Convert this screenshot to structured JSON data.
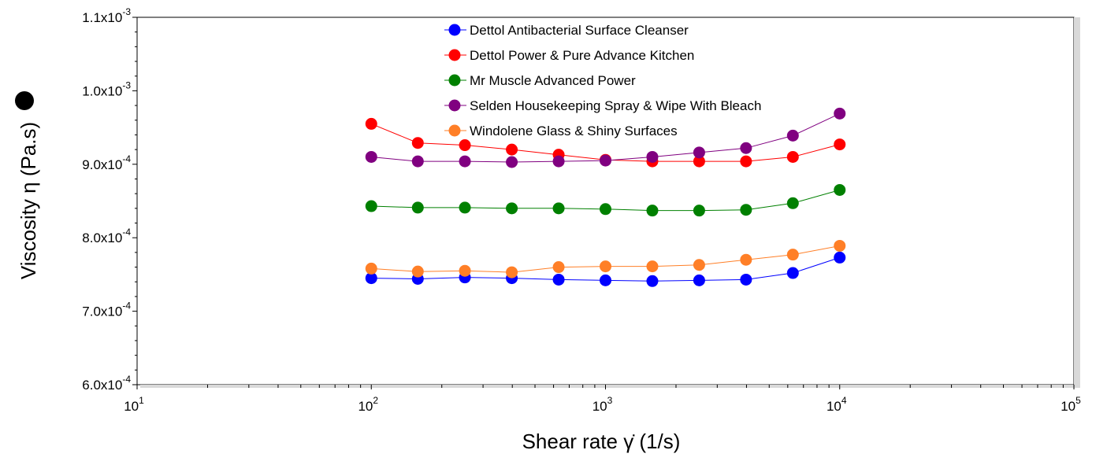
{
  "chart_data": {
    "type": "scatter",
    "title": "",
    "xlabel": "Shear rate  γ̇  (1/s)",
    "ylabel": "Viscosity  η  (Pa.s)",
    "ylabel_marker_color": "#000000",
    "x_scale": "log",
    "xlim": [
      10,
      100000
    ],
    "ylim": [
      0.0006,
      0.0011
    ],
    "x_ticks": [
      {
        "value": 10,
        "base": "10",
        "exp": "1"
      },
      {
        "value": 100,
        "base": "10",
        "exp": "2"
      },
      {
        "value": 1000,
        "base": "10",
        "exp": "3"
      },
      {
        "value": 10000,
        "base": "10",
        "exp": "4"
      },
      {
        "value": 100000,
        "base": "10",
        "exp": "5"
      }
    ],
    "y_ticks": [
      {
        "value": 0.0006,
        "mant": "6.0x10",
        "exp": "-4"
      },
      {
        "value": 0.0007,
        "mant": "7.0x10",
        "exp": "-4"
      },
      {
        "value": 0.0008,
        "mant": "8.0x10",
        "exp": "-4"
      },
      {
        "value": 0.0009,
        "mant": "9.0x10",
        "exp": "-4"
      },
      {
        "value": 0.001,
        "mant": "1.0x10",
        "exp": "-3"
      },
      {
        "value": 0.0011,
        "mant": "1.1x10",
        "exp": "-3"
      }
    ],
    "grid": false,
    "legend_position": "top-center",
    "x": [
      100,
      158,
      251,
      398,
      631,
      1000,
      1585,
      2512,
      3981,
      6310,
      10000
    ],
    "series": [
      {
        "name": "Dettol Antibacterial Surface Cleanser",
        "color": "#0000ff",
        "values": [
          0.000745,
          0.000744,
          0.000746,
          0.000745,
          0.000743,
          0.000742,
          0.000741,
          0.000742,
          0.000743,
          0.000752,
          0.000773
        ]
      },
      {
        "name": "Dettol Power & Pure Advance Kitchen",
        "color": "#ff0000",
        "values": [
          0.000955,
          0.000929,
          0.000926,
          0.00092,
          0.000913,
          0.000906,
          0.000904,
          0.000904,
          0.000904,
          0.00091,
          0.000927
        ]
      },
      {
        "name": "Mr Muscle Advanced Power",
        "color": "#008000",
        "values": [
          0.000843,
          0.000841,
          0.000841,
          0.00084,
          0.00084,
          0.000839,
          0.000837,
          0.000837,
          0.000838,
          0.000847,
          0.000865
        ]
      },
      {
        "name": "Selden Housekeeping Spray & Wipe With Bleach",
        "color": "#800080",
        "values": [
          0.00091,
          0.000904,
          0.000904,
          0.000903,
          0.000904,
          0.000905,
          0.00091,
          0.000916,
          0.000922,
          0.000939,
          0.000969
        ]
      },
      {
        "name": "Windolene Glass & Shiny Surfaces",
        "color": "#ff7f27",
        "values": [
          0.000758,
          0.000754,
          0.000755,
          0.000753,
          0.00076,
          0.000761,
          0.000761,
          0.000763,
          0.00077,
          0.000777,
          0.000789
        ]
      }
    ]
  }
}
